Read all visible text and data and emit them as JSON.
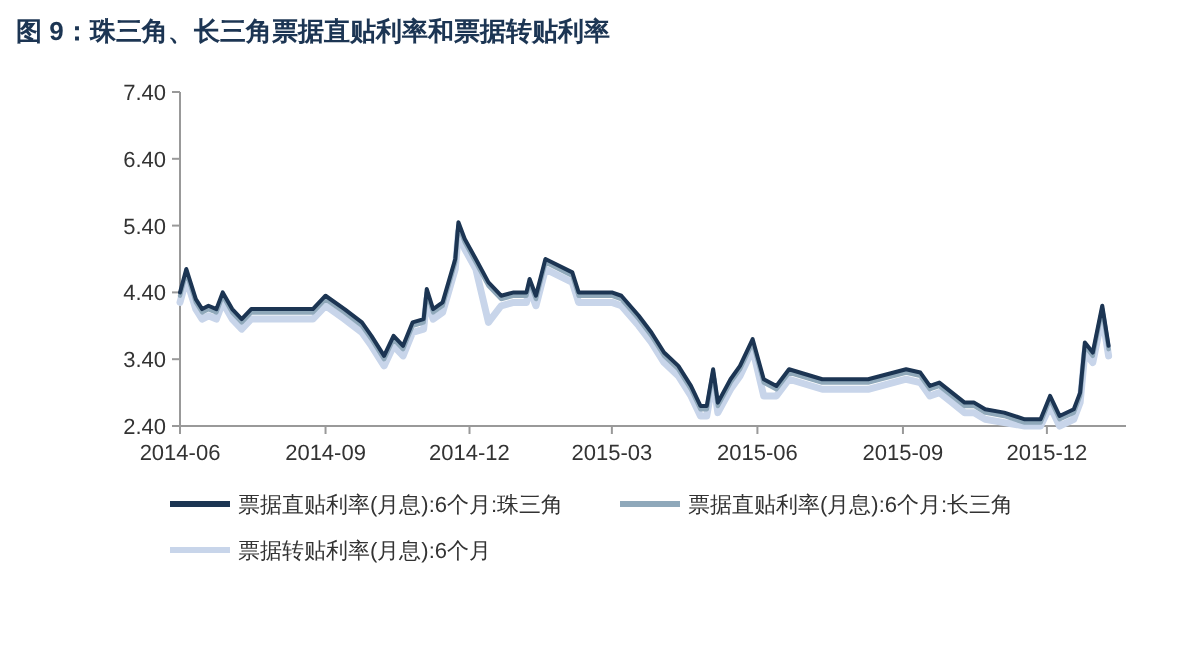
{
  "chart_data": {
    "type": "line",
    "title": "图 9：珠三角、长三角票据直贴利率和票据转贴利率",
    "x": [
      "2014-06-01",
      "2014-06-05",
      "2014-06-11",
      "2014-06-15",
      "2014-06-19",
      "2014-06-24",
      "2014-06-28",
      "2014-07-04",
      "2014-07-10",
      "2014-07-16",
      "2014-08-02",
      "2014-08-10",
      "2014-08-24",
      "2014-09-01",
      "2014-09-13",
      "2014-09-24",
      "2014-09-30",
      "2014-10-08",
      "2014-10-14",
      "2014-10-20",
      "2014-10-26",
      "2014-11-02",
      "2014-11-04",
      "2014-11-08",
      "2014-11-14",
      "2014-11-22",
      "2014-11-24",
      "2014-11-28",
      "2014-12-05",
      "2014-12-13",
      "2014-12-21",
      "2014-12-29",
      "2015-01-06",
      "2015-01-08",
      "2015-01-12",
      "2015-01-18",
      "2015-02-04",
      "2015-02-08",
      "2015-02-17",
      "2015-03-01",
      "2015-03-07",
      "2015-03-18",
      "2015-03-26",
      "2015-04-03",
      "2015-04-12",
      "2015-04-20",
      "2015-04-26",
      "2015-04-30",
      "2015-05-04",
      "2015-05-07",
      "2015-05-15",
      "2015-05-21",
      "2015-05-29",
      "2015-06-05",
      "2015-06-13",
      "2015-06-21",
      "2015-07-12",
      "2015-08-10",
      "2015-09-03",
      "2015-09-12",
      "2015-09-18",
      "2015-09-24",
      "2015-10-02",
      "2015-10-10",
      "2015-10-16",
      "2015-10-23",
      "2015-11-04",
      "2015-11-17",
      "2015-11-27",
      "2015-12-03",
      "2015-12-09",
      "2015-12-18",
      "2015-12-22",
      "2015-12-25",
      "2015-12-30",
      "2016-01-05",
      "2016-01-09"
    ],
    "series": [
      {
        "name": "票据直贴利率(月息):6个月:珠三角",
        "color": "#1c3553",
        "values": [
          4.4,
          4.75,
          4.3,
          4.15,
          4.2,
          4.15,
          4.4,
          4.15,
          4.0,
          4.15,
          4.15,
          4.15,
          4.15,
          4.35,
          4.15,
          3.95,
          3.75,
          3.45,
          3.75,
          3.6,
          3.95,
          4.0,
          4.45,
          4.15,
          4.25,
          4.9,
          5.45,
          5.2,
          4.9,
          4.55,
          4.35,
          4.4,
          4.4,
          4.6,
          4.35,
          4.9,
          4.7,
          4.4,
          4.4,
          4.4,
          4.35,
          4.05,
          3.8,
          3.5,
          3.3,
          3.0,
          2.7,
          2.7,
          3.25,
          2.75,
          3.1,
          3.3,
          3.7,
          3.1,
          3.0,
          3.25,
          3.1,
          3.1,
          3.25,
          3.2,
          3.0,
          3.05,
          2.9,
          2.75,
          2.75,
          2.65,
          2.6,
          2.5,
          2.5,
          2.85,
          2.55,
          2.65,
          2.9,
          3.65,
          3.5,
          4.2,
          3.6
        ]
      },
      {
        "name": "票据直贴利率(月息):6个月:长三角",
        "color": "#8fa8ba",
        "values": [
          4.35,
          4.7,
          4.25,
          4.1,
          4.15,
          4.1,
          4.35,
          4.1,
          3.95,
          4.1,
          4.1,
          4.1,
          4.1,
          4.3,
          4.1,
          3.9,
          3.7,
          3.4,
          3.7,
          3.55,
          3.9,
          3.95,
          4.4,
          4.1,
          4.2,
          4.85,
          5.4,
          5.15,
          4.85,
          4.5,
          4.3,
          4.35,
          4.35,
          4.55,
          4.3,
          4.85,
          4.65,
          4.35,
          4.35,
          4.35,
          4.3,
          4.0,
          3.75,
          3.45,
          3.25,
          2.95,
          2.65,
          2.65,
          3.2,
          2.7,
          3.05,
          3.25,
          3.65,
          3.05,
          2.95,
          3.2,
          3.05,
          3.05,
          3.2,
          3.15,
          2.95,
          3.0,
          2.85,
          2.7,
          2.7,
          2.6,
          2.55,
          2.45,
          2.45,
          2.8,
          2.5,
          2.6,
          2.85,
          3.6,
          3.45,
          4.15,
          3.55
        ]
      },
      {
        "name": "票据转贴利率(月息):6个月",
        "color": "#c8d5ea",
        "values": [
          4.25,
          4.6,
          4.15,
          4.0,
          4.05,
          4.0,
          4.25,
          4.0,
          3.85,
          4.0,
          4.0,
          4.0,
          4.0,
          4.2,
          4.0,
          3.8,
          3.6,
          3.3,
          3.6,
          3.45,
          3.8,
          3.85,
          4.3,
          4.0,
          4.1,
          4.75,
          5.3,
          5.05,
          4.75,
          3.95,
          4.2,
          4.25,
          4.25,
          4.45,
          4.2,
          4.75,
          4.55,
          4.25,
          4.25,
          4.25,
          4.2,
          3.9,
          3.65,
          3.35,
          3.15,
          2.85,
          2.55,
          2.55,
          3.1,
          2.6,
          2.95,
          3.15,
          3.55,
          2.85,
          2.85,
          3.1,
          2.95,
          2.95,
          3.1,
          3.05,
          2.85,
          2.9,
          2.75,
          2.6,
          2.6,
          2.5,
          2.45,
          2.4,
          2.4,
          2.7,
          2.4,
          2.5,
          2.75,
          3.5,
          3.35,
          4.05,
          3.45
        ]
      }
    ],
    "xlim": [
      "2014-06-01",
      "2016-01-20"
    ],
    "xticks": [
      "2014-06",
      "2014-09",
      "2014-12",
      "2015-03",
      "2015-06",
      "2015-09",
      "2015-12"
    ],
    "ylim": [
      2.4,
      7.4
    ],
    "yticks": [
      {
        "value": 2.4,
        "label": "2.40"
      },
      {
        "value": 3.4,
        "label": "3.40"
      },
      {
        "value": 4.4,
        "label": "4.40"
      },
      {
        "value": 5.4,
        "label": "5.40"
      },
      {
        "value": 6.4,
        "label": "6.40"
      },
      {
        "value": 7.4,
        "label": "7.40"
      }
    ],
    "legend": "bottom"
  }
}
